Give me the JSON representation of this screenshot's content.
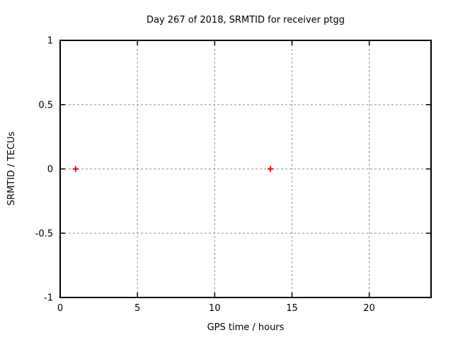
{
  "window": {
    "background": "#ffffff"
  },
  "chart_data": {
    "type": "scatter",
    "title": "Day 267 of 2018, SRMTID for receiver ptgg",
    "xlabel": "GPS time / hours",
    "ylabel": "SRMTID / TECUs",
    "xlim": [
      0,
      24
    ],
    "ylim": [
      -1,
      1
    ],
    "xticks": {
      "values": [
        0,
        5,
        10,
        15,
        20
      ],
      "labels": [
        "0",
        "5",
        "10",
        "15",
        "20"
      ]
    },
    "yticks": {
      "values": [
        -1,
        -0.5,
        0,
        0.5,
        1
      ],
      "labels": [
        "-1",
        "-0.5",
        "0",
        "0.5",
        "1"
      ]
    },
    "grid": true,
    "legend_position": "none",
    "series": [
      {
        "name": "SRMTID",
        "marker": "plus",
        "color": "#ff0000",
        "points": [
          [
            1.0,
            0.0
          ],
          [
            13.6,
            0.0
          ]
        ]
      }
    ],
    "colors": {
      "axis": "#000000",
      "grid": "#a5a5a5",
      "background": "#ffffff"
    }
  }
}
